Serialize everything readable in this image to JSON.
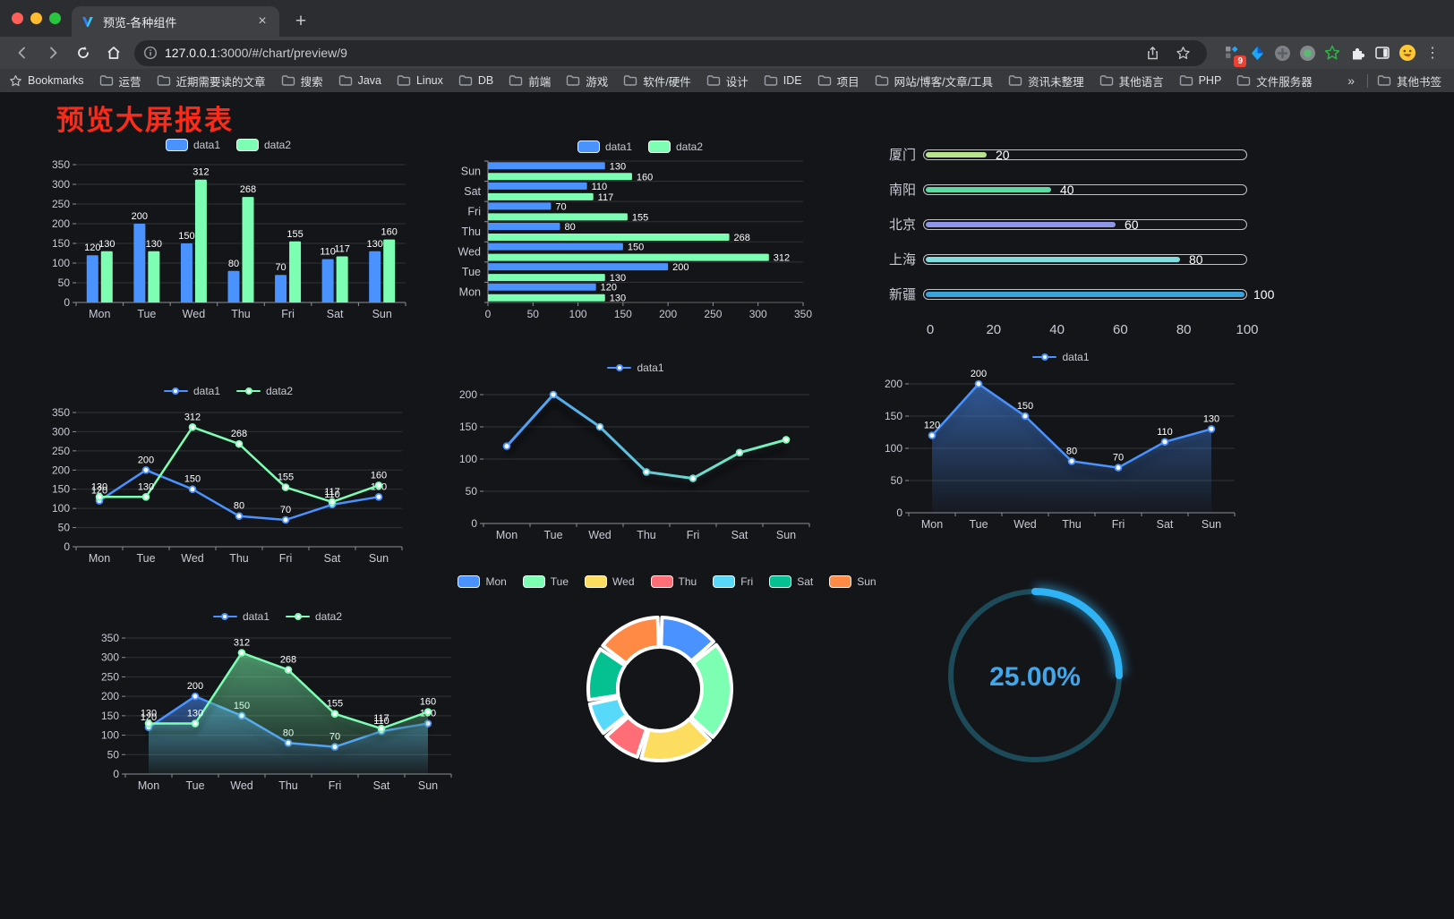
{
  "browser": {
    "tab_title": "预览-各种组件",
    "close_tab_label": "×",
    "new_tab_label": "+",
    "url_host": "127.0.0.1",
    "url_path": ":3000/#/chart/preview/9",
    "bookmarks_label": "Bookmarks",
    "bookmarks": [
      "运营",
      "近期需要读的文章",
      "搜索",
      "Java",
      "Linux",
      "DB",
      "前端",
      "游戏",
      "软件/硬件",
      "设计",
      "IDE",
      "项目",
      "网站/博客/文章/工具",
      "资讯未整理",
      "其他语言",
      "PHP",
      "文件服务器"
    ],
    "overflow_chevron": "»",
    "other_bookmarks": "其他书签",
    "extensions_badge": "9"
  },
  "page": {
    "title": "预览大屏报表",
    "title_color": "#fa2c19"
  },
  "chart_data": [
    {
      "type": "bar",
      "categories": [
        "Mon",
        "Tue",
        "Wed",
        "Thu",
        "Fri",
        "Sat",
        "Sun"
      ],
      "series": [
        {
          "name": "data1",
          "color": "#4992ff",
          "values": [
            120,
            200,
            150,
            80,
            70,
            110,
            130
          ]
        },
        {
          "name": "data2",
          "color": "#7cffb2",
          "values": [
            130,
            130,
            312,
            268,
            155,
            117,
            160
          ]
        }
      ],
      "ylim": [
        0,
        350
      ],
      "ystep": 50,
      "labels": true
    },
    {
      "type": "bar-horizontal",
      "categories": [
        "Mon",
        "Tue",
        "Wed",
        "Thu",
        "Fri",
        "Sat",
        "Sun"
      ],
      "series": [
        {
          "name": "data1",
          "color": "#4992ff",
          "values": [
            120,
            200,
            150,
            80,
            70,
            110,
            130
          ]
        },
        {
          "name": "data2",
          "color": "#7cffb2",
          "values": [
            130,
            130,
            312,
            268,
            155,
            117,
            160
          ]
        }
      ],
      "xlim": [
        0,
        350
      ],
      "xstep": 50,
      "labels": true
    },
    {
      "type": "progress",
      "rows": [
        {
          "label": "厦门",
          "value": 20,
          "color": "#b6e38b"
        },
        {
          "label": "南阳",
          "value": 40,
          "color": "#5fd8a3"
        },
        {
          "label": "北京",
          "value": 60,
          "color": "#8f96e8"
        },
        {
          "label": "上海",
          "value": 80,
          "color": "#7fdde0"
        },
        {
          "label": "新疆",
          "value": 100,
          "color": "#3aa3dc"
        }
      ],
      "xlim": [
        0,
        100
      ],
      "xticks": [
        0,
        20,
        40,
        60,
        80,
        100
      ]
    },
    {
      "type": "line",
      "categories": [
        "Mon",
        "Tue",
        "Wed",
        "Thu",
        "Fri",
        "Sat",
        "Sun"
      ],
      "series": [
        {
          "name": "data1",
          "color": "#4992ff",
          "values": [
            120,
            200,
            150,
            80,
            70,
            110,
            130
          ]
        },
        {
          "name": "data2",
          "color": "#7cffb2",
          "values": [
            130,
            130,
            312,
            268,
            155,
            117,
            160
          ]
        }
      ],
      "ylim": [
        0,
        350
      ],
      "ystep": 50,
      "labels": true
    },
    {
      "type": "line",
      "categories": [
        "Mon",
        "Tue",
        "Wed",
        "Thu",
        "Fri",
        "Sat",
        "Sun"
      ],
      "gradient": [
        "#4992ff",
        "#7cffb2"
      ],
      "shadow": true,
      "series": [
        {
          "name": "data1",
          "color": "#4992ff",
          "values": [
            120,
            200,
            150,
            80,
            70,
            110,
            130
          ]
        }
      ],
      "ylim": [
        0,
        200
      ],
      "ystep": 50,
      "labels": false
    },
    {
      "type": "line",
      "categories": [
        "Mon",
        "Tue",
        "Wed",
        "Thu",
        "Fri",
        "Sat",
        "Sun"
      ],
      "area": true,
      "shadow": true,
      "series": [
        {
          "name": "data1",
          "color": "#4992ff",
          "values": [
            120,
            200,
            150,
            80,
            70,
            110,
            130
          ]
        }
      ],
      "ylim": [
        0,
        200
      ],
      "ystep": 50,
      "labels": true
    },
    {
      "type": "line",
      "categories": [
        "Mon",
        "Tue",
        "Wed",
        "Thu",
        "Fri",
        "Sat",
        "Sun"
      ],
      "area": true,
      "shadow": true,
      "series": [
        {
          "name": "data1",
          "color": "#4992ff",
          "values": [
            120,
            200,
            150,
            80,
            70,
            110,
            130
          ]
        },
        {
          "name": "data2",
          "color": "#7cffb2",
          "values": [
            130,
            130,
            312,
            268,
            155,
            117,
            160
          ]
        }
      ],
      "ylim": [
        0,
        350
      ],
      "ystep": 50,
      "labels": true
    },
    {
      "type": "pie",
      "donut": true,
      "categories": [
        "Mon",
        "Tue",
        "Wed",
        "Thu",
        "Fri",
        "Sat",
        "Sun"
      ],
      "values": [
        120,
        200,
        150,
        80,
        70,
        110,
        130
      ],
      "colors": [
        "#4992ff",
        "#7cffb2",
        "#fddd60",
        "#ff6e76",
        "#58d9f9",
        "#05c091",
        "#ff8a45"
      ]
    },
    {
      "type": "gauge",
      "value": 25,
      "label": "25.00%",
      "ring_color": "#2fb3f5",
      "track_color": "#1d4a58",
      "text_color": "#41a7ea"
    }
  ]
}
